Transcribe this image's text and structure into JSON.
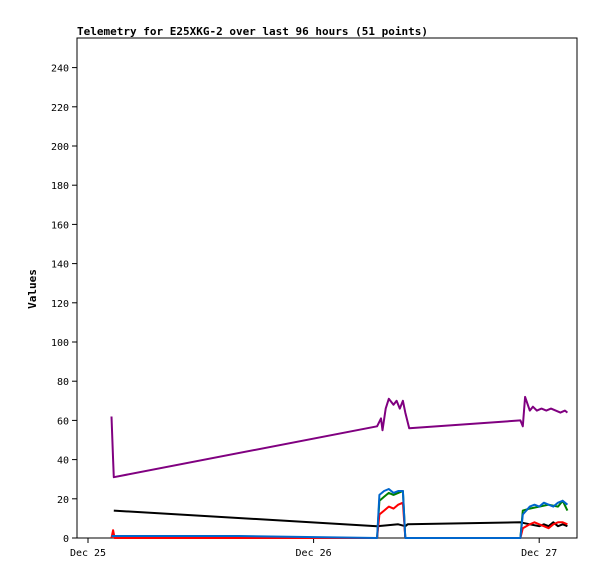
{
  "chart_data": {
    "type": "line",
    "title": "Telemetry for E25XKG-2 over last 96 hours (51 points)",
    "xlabel": "",
    "ylabel": "Values",
    "xlim": [
      "2023-12-25T00:00",
      "2023-12-27T12:00"
    ],
    "ylim": [
      0,
      250
    ],
    "yticks": [
      0,
      20,
      40,
      60,
      80,
      100,
      120,
      140,
      160,
      180,
      200,
      220,
      240
    ],
    "xticks": [
      {
        "value": "2023-12-25T00:00",
        "label": "Dec 25"
      },
      {
        "value": "2023-12-26T00:00",
        "label": "Dec 26"
      },
      {
        "value": "2023-12-27T00:00",
        "label": "Dec 27"
      }
    ],
    "grid": false,
    "legend": "none",
    "series": [
      {
        "color": "#800080",
        "points": [
          [
            "2023-12-25T02:30",
            62
          ],
          [
            "2023-12-25T02:40",
            40
          ],
          [
            "2023-12-25T02:45",
            31
          ],
          [
            "2023-12-26T06:45",
            57
          ],
          [
            "2023-12-26T07:10",
            61
          ],
          [
            "2023-12-26T07:20",
            55
          ],
          [
            "2023-12-26T07:40",
            66
          ],
          [
            "2023-12-26T08:00",
            71
          ],
          [
            "2023-12-26T08:30",
            68
          ],
          [
            "2023-12-26T08:50",
            70
          ],
          [
            "2023-12-26T09:10",
            66
          ],
          [
            "2023-12-26T09:30",
            70
          ],
          [
            "2023-12-26T09:45",
            64
          ],
          [
            "2023-12-26T10:10",
            56
          ],
          [
            "2023-12-26T22:00",
            60
          ],
          [
            "2023-12-26T22:15",
            57
          ],
          [
            "2023-12-26T22:30",
            72
          ],
          [
            "2023-12-26T23:00",
            65
          ],
          [
            "2023-12-26T23:20",
            67
          ],
          [
            "2023-12-26T23:45",
            65
          ],
          [
            "2023-12-27T00:15",
            66
          ],
          [
            "2023-12-27T00:45",
            65
          ],
          [
            "2023-12-27T01:15",
            66
          ],
          [
            "2023-12-27T01:45",
            65
          ],
          [
            "2023-12-27T02:15",
            64
          ],
          [
            "2023-12-27T02:45",
            65
          ],
          [
            "2023-12-27T03:00",
            64
          ]
        ]
      },
      {
        "color": "#000000",
        "points": [
          [
            "2023-12-25T02:45",
            14
          ],
          [
            "2023-12-26T06:45",
            6
          ],
          [
            "2023-12-26T09:00",
            7
          ],
          [
            "2023-12-26T09:45",
            6
          ],
          [
            "2023-12-26T10:00",
            7
          ],
          [
            "2023-12-26T22:00",
            8
          ],
          [
            "2023-12-26T23:00",
            7
          ],
          [
            "2023-12-27T00:00",
            6
          ],
          [
            "2023-12-27T00:30",
            7
          ],
          [
            "2023-12-27T01:00",
            6
          ],
          [
            "2023-12-27T01:30",
            8
          ],
          [
            "2023-12-27T02:00",
            6
          ],
          [
            "2023-12-27T02:30",
            7
          ],
          [
            "2023-12-27T03:00",
            6
          ]
        ]
      },
      {
        "color": "#008000",
        "points": [
          [
            "2023-12-26T06:45",
            0
          ],
          [
            "2023-12-26T07:00",
            19
          ],
          [
            "2023-12-26T07:30",
            21
          ],
          [
            "2023-12-26T08:00",
            23
          ],
          [
            "2023-12-26T08:30",
            22
          ],
          [
            "2023-12-26T09:00",
            23
          ],
          [
            "2023-12-26T09:30",
            24
          ],
          [
            "2023-12-26T09:45",
            0
          ],
          [
            "2023-12-26T22:00",
            0
          ],
          [
            "2023-12-26T22:15",
            14
          ],
          [
            "2023-12-26T23:00",
            15
          ],
          [
            "2023-12-27T00:00",
            16
          ],
          [
            "2023-12-27T01:00",
            17
          ],
          [
            "2023-12-27T02:00",
            16
          ],
          [
            "2023-12-27T02:30",
            19
          ],
          [
            "2023-12-27T03:00",
            14
          ]
        ]
      },
      {
        "color": "#ff0000",
        "points": [
          [
            "2023-12-25T02:30",
            0
          ],
          [
            "2023-12-25T02:40",
            4
          ],
          [
            "2023-12-25T02:50",
            0
          ],
          [
            "2023-12-26T06:45",
            0
          ],
          [
            "2023-12-26T07:00",
            12
          ],
          [
            "2023-12-26T07:30",
            14
          ],
          [
            "2023-12-26T08:00",
            16
          ],
          [
            "2023-12-26T08:30",
            15
          ],
          [
            "2023-12-26T09:00",
            17
          ],
          [
            "2023-12-26T09:30",
            18
          ],
          [
            "2023-12-26T09:45",
            0
          ],
          [
            "2023-12-26T22:00",
            0
          ],
          [
            "2023-12-26T22:15",
            5
          ],
          [
            "2023-12-26T23:00",
            7
          ],
          [
            "2023-12-26T23:30",
            8
          ],
          [
            "2023-12-27T00:00",
            7
          ],
          [
            "2023-12-27T00:30",
            6
          ],
          [
            "2023-12-27T01:00",
            5
          ],
          [
            "2023-12-27T01:30",
            7
          ],
          [
            "2023-12-27T02:00",
            8
          ],
          [
            "2023-12-27T02:30",
            8
          ],
          [
            "2023-12-27T03:00",
            7
          ]
        ]
      },
      {
        "color": "#0066cc",
        "points": [
          [
            "2023-12-25T02:30",
            1
          ],
          [
            "2023-12-25T16:00",
            1
          ],
          [
            "2023-12-26T06:45",
            0
          ],
          [
            "2023-12-26T07:00",
            22
          ],
          [
            "2023-12-26T07:30",
            24
          ],
          [
            "2023-12-26T08:00",
            25
          ],
          [
            "2023-12-26T08:30",
            23
          ],
          [
            "2023-12-26T09:00",
            24
          ],
          [
            "2023-12-26T09:30",
            24
          ],
          [
            "2023-12-26T09:45",
            0
          ],
          [
            "2023-12-26T22:00",
            0
          ],
          [
            "2023-12-26T22:15",
            12
          ],
          [
            "2023-12-26T23:00",
            16
          ],
          [
            "2023-12-26T23:30",
            17
          ],
          [
            "2023-12-27T00:00",
            16
          ],
          [
            "2023-12-27T00:30",
            18
          ],
          [
            "2023-12-27T01:00",
            17
          ],
          [
            "2023-12-27T01:30",
            16
          ],
          [
            "2023-12-27T02:00",
            18
          ],
          [
            "2023-12-27T02:30",
            19
          ],
          [
            "2023-12-27T03:00",
            17
          ]
        ]
      }
    ]
  }
}
